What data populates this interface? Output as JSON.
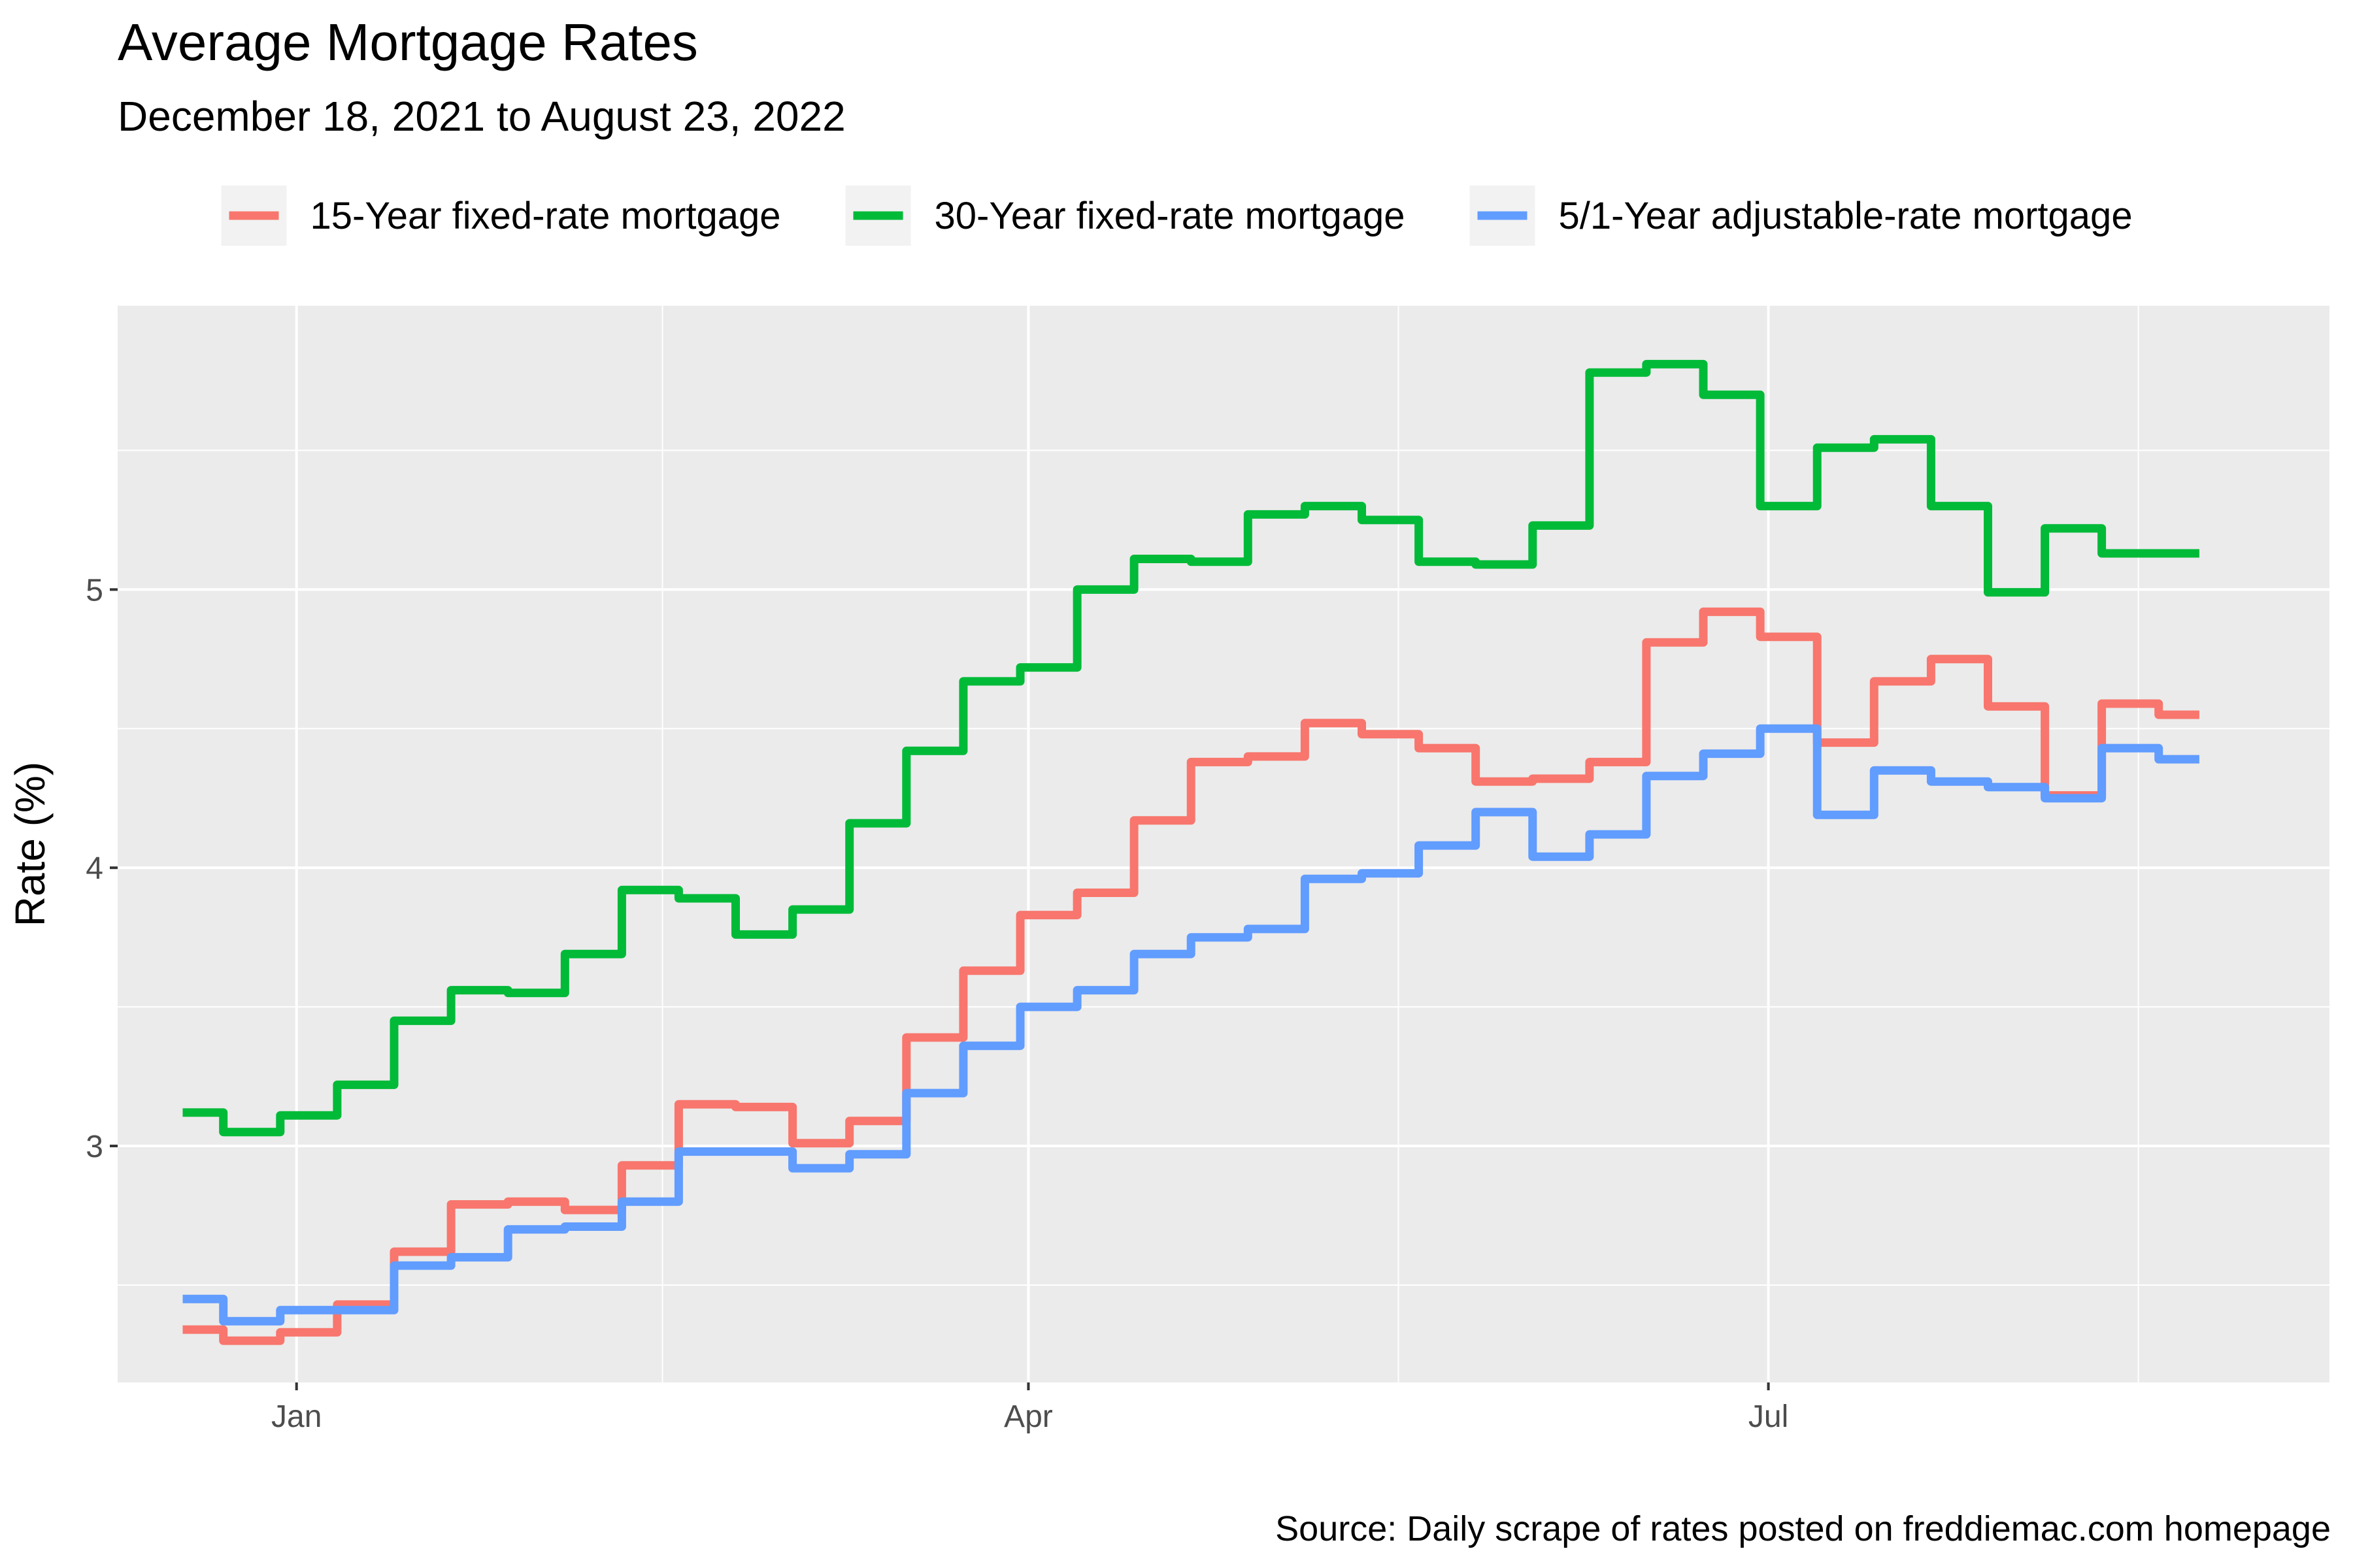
{
  "chart_data": {
    "type": "line",
    "title": "Average Mortgage Rates",
    "subtitle": "December 18, 2021 to August 23, 2022",
    "caption": "Source: Daily scrape of rates posted on freddiemac.com homepage",
    "xlabel": "",
    "ylabel": "Rate (%)",
    "xlim": [
      "2021-12-10",
      "2022-09-08"
    ],
    "ylim": [
      2.15,
      6.02
    ],
    "x_ticks": [
      {
        "date": "2022-01-01",
        "label": "Jan"
      },
      {
        "date": "2022-04-01",
        "label": "Apr"
      },
      {
        "date": "2022-07-01",
        "label": "Jul"
      }
    ],
    "y_ticks": [
      3,
      4,
      5
    ],
    "grid": true,
    "legend_position": "top",
    "series": [
      {
        "name": "15-Year fixed-rate mortgage",
        "color": "#F8766D",
        "x": [
          "2021-12-18",
          "2021-12-23",
          "2021-12-30",
          "2022-01-06",
          "2022-01-13",
          "2022-01-20",
          "2022-01-27",
          "2022-02-03",
          "2022-02-10",
          "2022-02-17",
          "2022-02-24",
          "2022-03-03",
          "2022-03-10",
          "2022-03-17",
          "2022-03-24",
          "2022-03-31",
          "2022-04-07",
          "2022-04-14",
          "2022-04-21",
          "2022-04-28",
          "2022-05-05",
          "2022-05-12",
          "2022-05-19",
          "2022-05-26",
          "2022-06-02",
          "2022-06-09",
          "2022-06-16",
          "2022-06-23",
          "2022-06-30",
          "2022-07-07",
          "2022-07-14",
          "2022-07-21",
          "2022-07-28",
          "2022-08-04",
          "2022-08-11",
          "2022-08-18",
          "2022-08-23"
        ],
        "y": [
          2.34,
          2.3,
          2.33,
          2.43,
          2.62,
          2.79,
          2.8,
          2.77,
          2.93,
          3.15,
          3.14,
          3.01,
          3.09,
          3.39,
          3.63,
          3.83,
          3.91,
          4.17,
          4.38,
          4.4,
          4.52,
          4.48,
          4.43,
          4.31,
          4.32,
          4.38,
          4.81,
          4.92,
          4.83,
          4.45,
          4.67,
          4.75,
          4.58,
          4.26,
          4.59,
          4.55,
          4.55
        ]
      },
      {
        "name": "30-Year fixed-rate mortgage",
        "color": "#00BA38",
        "x": [
          "2021-12-18",
          "2021-12-23",
          "2021-12-30",
          "2022-01-06",
          "2022-01-13",
          "2022-01-20",
          "2022-01-27",
          "2022-02-03",
          "2022-02-10",
          "2022-02-17",
          "2022-02-24",
          "2022-03-03",
          "2022-03-10",
          "2022-03-17",
          "2022-03-24",
          "2022-03-31",
          "2022-04-07",
          "2022-04-14",
          "2022-04-21",
          "2022-04-28",
          "2022-05-05",
          "2022-05-12",
          "2022-05-19",
          "2022-05-26",
          "2022-06-02",
          "2022-06-09",
          "2022-06-16",
          "2022-06-23",
          "2022-06-30",
          "2022-07-07",
          "2022-07-14",
          "2022-07-21",
          "2022-07-28",
          "2022-08-04",
          "2022-08-11",
          "2022-08-18",
          "2022-08-23"
        ],
        "y": [
          3.12,
          3.05,
          3.11,
          3.22,
          3.45,
          3.56,
          3.55,
          3.69,
          3.92,
          3.89,
          3.76,
          3.85,
          4.16,
          4.42,
          4.67,
          4.72,
          5.0,
          5.11,
          5.1,
          5.27,
          5.3,
          5.25,
          5.1,
          5.09,
          5.23,
          5.78,
          5.81,
          5.7,
          5.3,
          5.51,
          5.54,
          5.3,
          4.99,
          5.22,
          5.13,
          5.13,
          5.13
        ]
      },
      {
        "name": "5/1-Year adjustable-rate mortgage",
        "color": "#619CFF",
        "x": [
          "2021-12-18",
          "2021-12-23",
          "2021-12-30",
          "2022-01-06",
          "2022-01-13",
          "2022-01-20",
          "2022-01-27",
          "2022-02-03",
          "2022-02-10",
          "2022-02-17",
          "2022-02-24",
          "2022-03-03",
          "2022-03-10",
          "2022-03-17",
          "2022-03-24",
          "2022-03-31",
          "2022-04-07",
          "2022-04-14",
          "2022-04-21",
          "2022-04-28",
          "2022-05-05",
          "2022-05-12",
          "2022-05-19",
          "2022-05-26",
          "2022-06-02",
          "2022-06-09",
          "2022-06-16",
          "2022-06-23",
          "2022-06-30",
          "2022-07-07",
          "2022-07-14",
          "2022-07-21",
          "2022-07-28",
          "2022-08-04",
          "2022-08-11",
          "2022-08-18",
          "2022-08-23"
        ],
        "y": [
          2.45,
          2.37,
          2.41,
          2.41,
          2.57,
          2.6,
          2.7,
          2.71,
          2.8,
          2.98,
          2.98,
          2.92,
          2.97,
          3.19,
          3.36,
          3.5,
          3.56,
          3.69,
          3.75,
          3.78,
          3.96,
          3.98,
          4.08,
          4.2,
          4.04,
          4.12,
          4.33,
          4.41,
          4.5,
          4.19,
          4.35,
          4.31,
          4.29,
          4.25,
          4.43,
          4.39,
          4.39
        ]
      }
    ]
  }
}
